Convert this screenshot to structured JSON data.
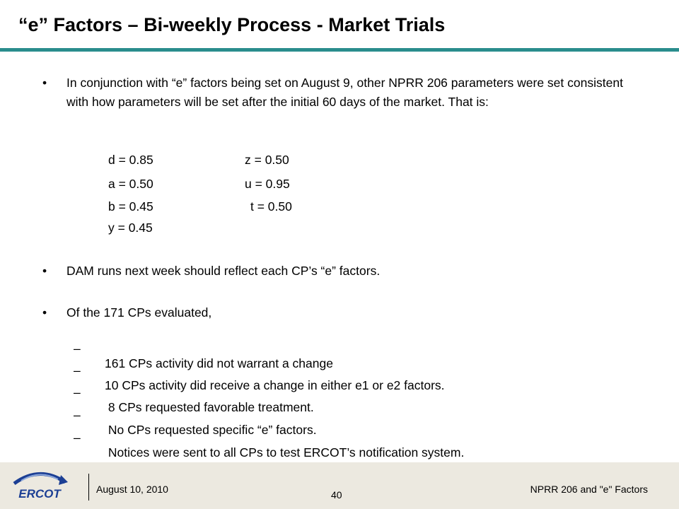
{
  "title": "“e” Factors – Bi-weekly Process - Market Trials",
  "bullets": [
    "In conjunction with “e” factors being set on August 9, other NPRR 206 parameters were set consistent with how parameters will be set after the initial 60 days of the market.  That is:",
    "DAM runs next week should reflect each CP’s “e” factors.",
    "Of the 171 CPs evaluated,"
  ],
  "bullet_glyph": "•",
  "parameters": {
    "left": [
      "d = 0.85",
      "a = 0.50",
      "b = 0.45",
      "y = 0.45"
    ],
    "right": [
      "z = 0.50",
      "u = 0.95",
      "t = 0.50"
    ]
  },
  "sub_dash": "–",
  "sub_items": [
    "161 CPs activity did not warrant a change",
    "10 CPs activity did receive a change in either e1 or e2 factors.",
    " 8 CPs requested favorable treatment.",
    " No CPs requested specific “e” factors.",
    " Notices were sent to all CPs to test ERCOT’s notification system."
  ],
  "footer": {
    "logo_text": "ERCOT",
    "date": "August 10, 2010",
    "page": "40",
    "right": "NPRR 206 and \"e\" Factors"
  },
  "colors": {
    "title_rule": "#2a8d8d",
    "footer_bg": "#ece9e0",
    "logo_blue": "#1c3f94"
  }
}
